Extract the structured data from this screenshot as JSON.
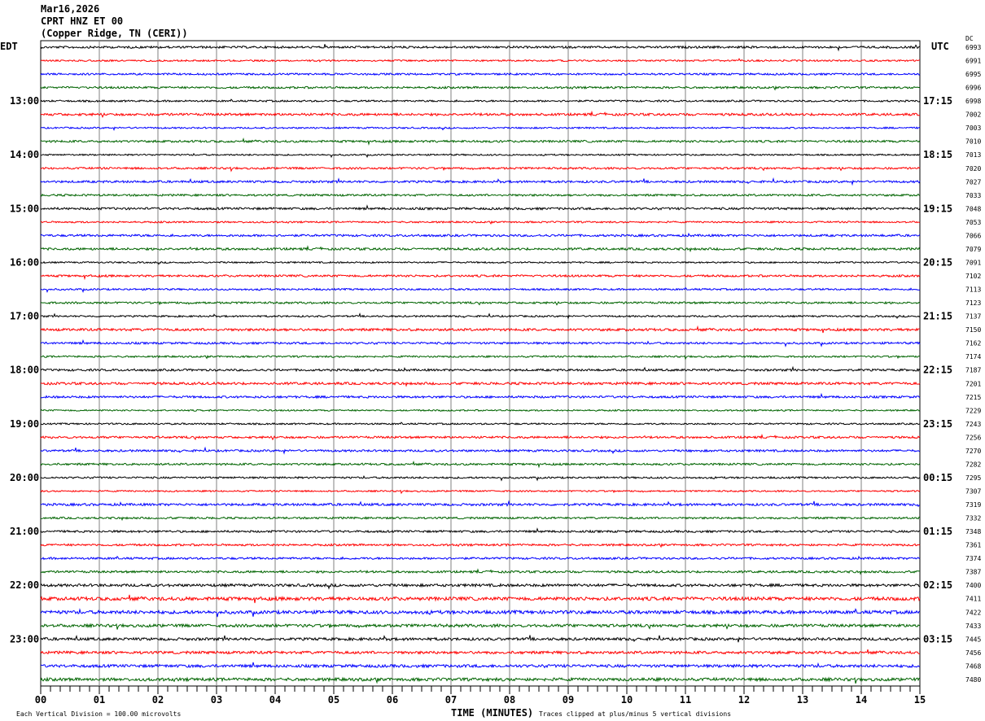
{
  "header": {
    "date": "Mar16,2026",
    "station": "CPRT HNZ ET 00",
    "location": "(Copper Ridge, TN (CERI))"
  },
  "chart_data": {
    "type": "line",
    "title": "CPRT HNZ ET 00",
    "left_timezone": "EDT",
    "right_timezone": "UTC",
    "dc_header": "DC",
    "xlabel": "TIME (MINUTES)",
    "x_ticks": [
      "00",
      "01",
      "02",
      "03",
      "04",
      "05",
      "06",
      "07",
      "08",
      "09",
      "10",
      "11",
      "12",
      "13",
      "14",
      "15"
    ],
    "xlim": [
      0,
      15
    ],
    "trace_colors": [
      "#000000",
      "#ff0000",
      "#0000ff",
      "#006400"
    ],
    "left_hour_labels": [
      "13:00",
      "14:00",
      "15:00",
      "16:00",
      "17:00",
      "18:00",
      "19:00",
      "20:00",
      "21:00",
      "22:00",
      "23:00"
    ],
    "right_hour_labels": [
      "17:15",
      "18:15",
      "19:15",
      "20:15",
      "21:15",
      "22:15",
      "23:15",
      "00:15",
      "01:15",
      "02:15",
      "03:15"
    ],
    "dc_values": [
      "6993",
      "6991",
      "6995",
      "6996",
      "6998",
      "7002",
      "7003",
      "7010",
      "7013",
      "7020",
      "7027",
      "7033",
      "7048",
      "7053",
      "7066",
      "7079",
      "7091",
      "7102",
      "7113",
      "7123",
      "7137",
      "7150",
      "7162",
      "7174",
      "7187",
      "7201",
      "7215",
      "7229",
      "7243",
      "7256",
      "7270",
      "7282",
      "7295",
      "7307",
      "7319",
      "7332",
      "7348",
      "7361",
      "7374",
      "7387",
      "7400",
      "7411",
      "7422",
      "7433",
      "7445",
      "7456",
      "7468",
      "7480"
    ],
    "scale_note": "Each Vertical Division =  100.00 microvolts",
    "clip_note": "Traces clipped at plus/minus 5 vertical divisions",
    "grid": true
  }
}
